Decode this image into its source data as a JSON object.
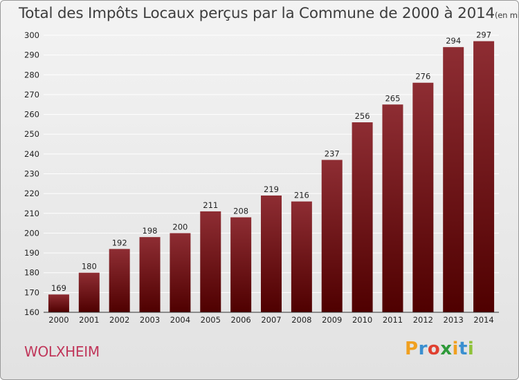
{
  "chart_data": {
    "type": "bar",
    "title": "Total des Impôts Locaux perçus par la Commune de 2000 à 2014",
    "subtitle": "(en milliers d'€)",
    "categories": [
      "2000",
      "2001",
      "2002",
      "2003",
      "2004",
      "2005",
      "2006",
      "2007",
      "2008",
      "2009",
      "2010",
      "2011",
      "2012",
      "2013",
      "2014"
    ],
    "values": [
      169,
      180,
      192,
      198,
      200,
      211,
      208,
      219,
      216,
      237,
      256,
      265,
      276,
      294,
      297
    ],
    "ylim": [
      160,
      300
    ],
    "yticks": [
      160,
      170,
      180,
      190,
      200,
      210,
      220,
      230,
      240,
      250,
      260,
      270,
      280,
      290,
      300
    ],
    "xlabel": "",
    "ylabel": "",
    "bar_color": "#7a1f24"
  },
  "commune": "WOLXHEIM",
  "logo": {
    "letters": [
      "P",
      "r",
      "o",
      "x",
      "i",
      "t",
      "i"
    ],
    "colors": [
      "#f0a020",
      "#3a8fd0",
      "#e04030",
      "#2f9a3a",
      "#f0a020",
      "#3a8fd0",
      "#8fc23a"
    ]
  }
}
